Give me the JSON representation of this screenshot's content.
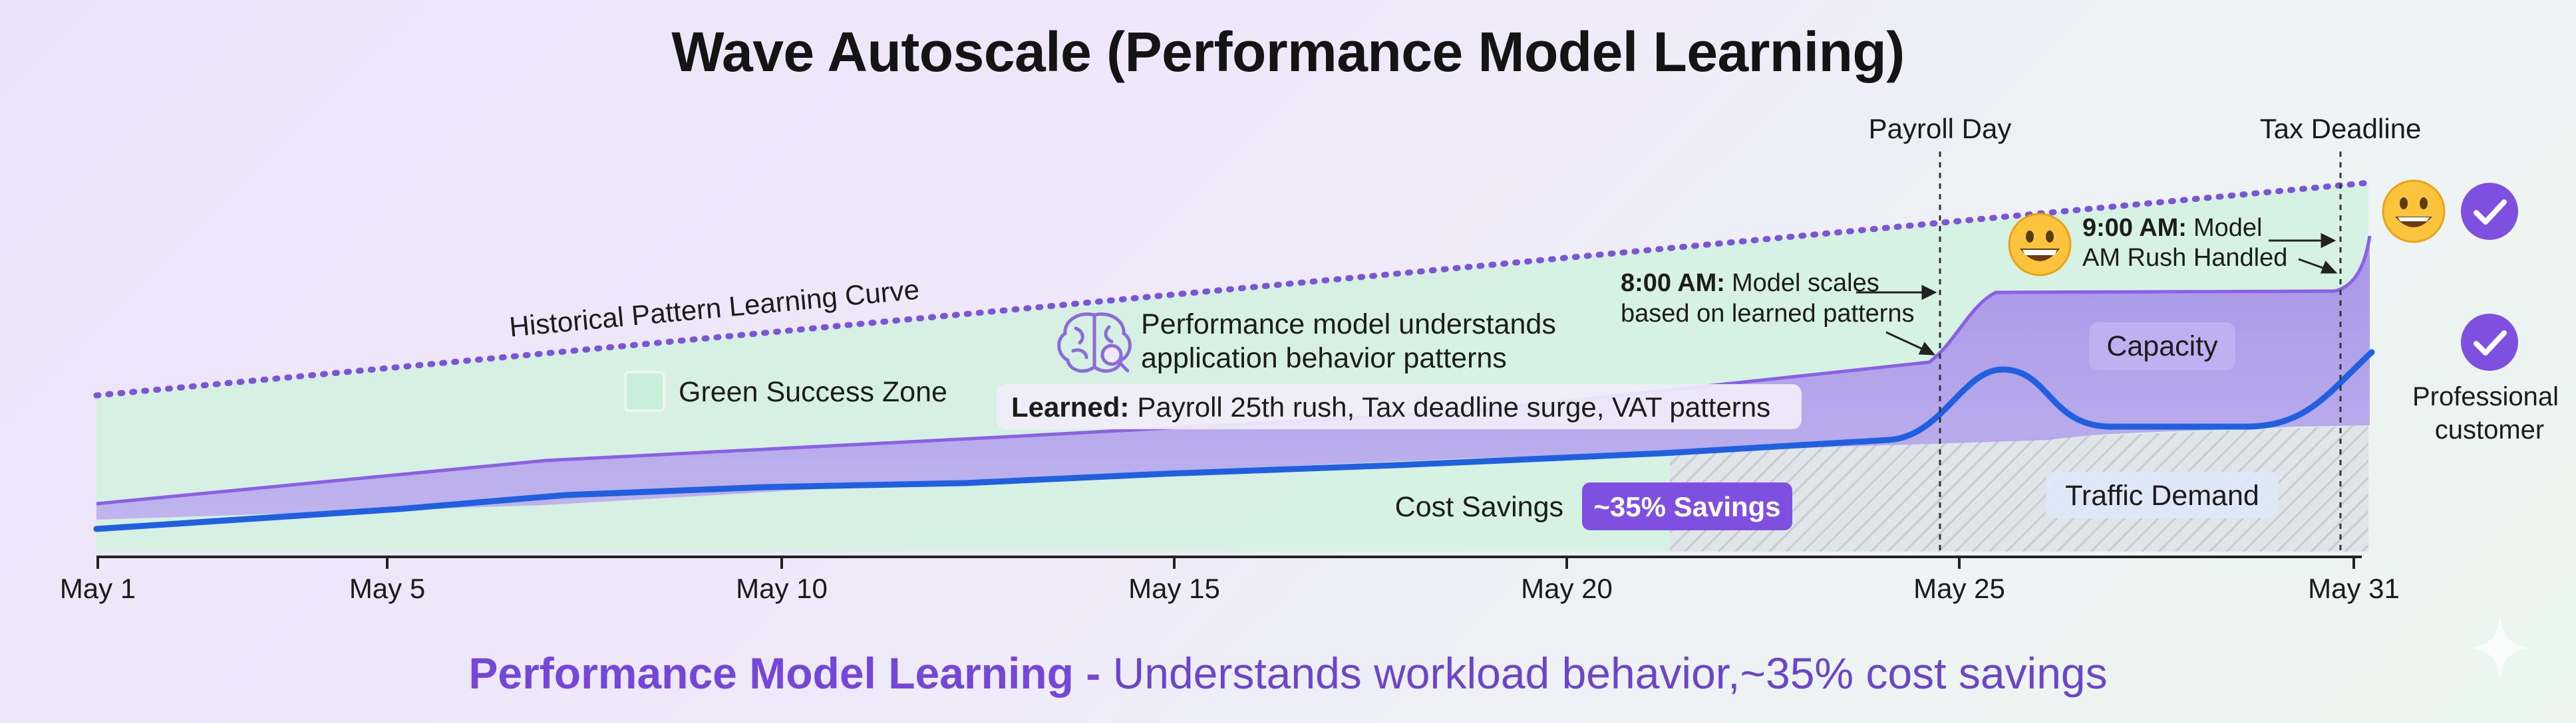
{
  "title": "Wave Autoscale (Performance Model Learning)",
  "footer": {
    "bold": "Performance Model Learning -",
    "rest_a": "Understands workload behavior,",
    "rest_b": "~35% cost savings"
  },
  "events": {
    "payroll": "Payroll Day",
    "tax": "Tax Deadline"
  },
  "labels": {
    "learning_curve": "Historical Pattern Learning Curve",
    "green_zone": "Green Success Zone",
    "model_line1": "Performance model understands",
    "model_line2": "application behavior patterns",
    "learned_bold": "Learned:",
    "learned_rest": "Payroll 25th rush, Tax deadline surge, VAT patterns",
    "am8_bold": "8:00 AM:",
    "am8_rest": "Model scales",
    "am8_line2": "based on learned patterns",
    "am9_bold": "9:00 AM:",
    "am9_rest": "Model",
    "am9_line2": "AM Rush Handled",
    "capacity": "Capacity",
    "traffic": "Traffic Demand",
    "cost_savings": "Cost Savings",
    "savings_badge": "~35% Savings",
    "professional_line1": "Professional",
    "professional_line2": "customer"
  },
  "x_ticks": [
    "May 1",
    "May 5",
    "May 10",
    "May 15",
    "May 20",
    "May 25",
    "May 31"
  ],
  "colors": {
    "purple": "#7b4fe0",
    "capacity_fill": "#a78bec",
    "traffic_line": "#1f5fe0",
    "green_zone": "#d5f3e2",
    "hatch": "#c9cfd6"
  }
}
